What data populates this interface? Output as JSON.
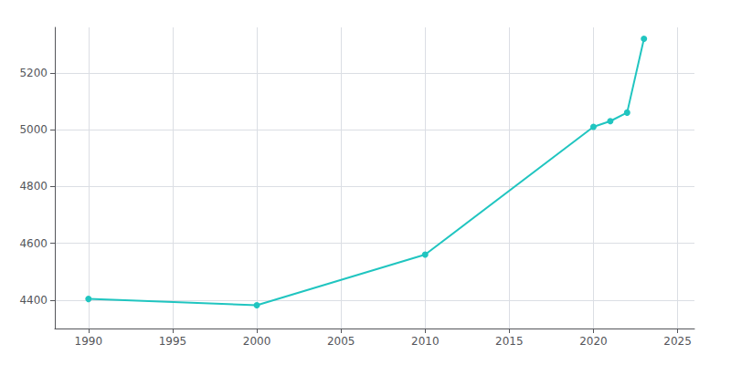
{
  "chart_data": {
    "type": "line",
    "x": [
      1990,
      2000,
      2010,
      2020,
      2021,
      2022,
      2023
    ],
    "values": [
      4404,
      4382,
      4560,
      5010,
      5030,
      5060,
      5320
    ],
    "color": "#20C5C0",
    "marker": "circle",
    "xlim": [
      1988,
      2026
    ],
    "ylim": [
      4300,
      5360
    ],
    "xticks": [
      1990,
      1995,
      2000,
      2005,
      2010,
      2015,
      2020,
      2025
    ],
    "yticks": [
      4400,
      4600,
      4800,
      5000,
      5200
    ],
    "grid": true
  }
}
